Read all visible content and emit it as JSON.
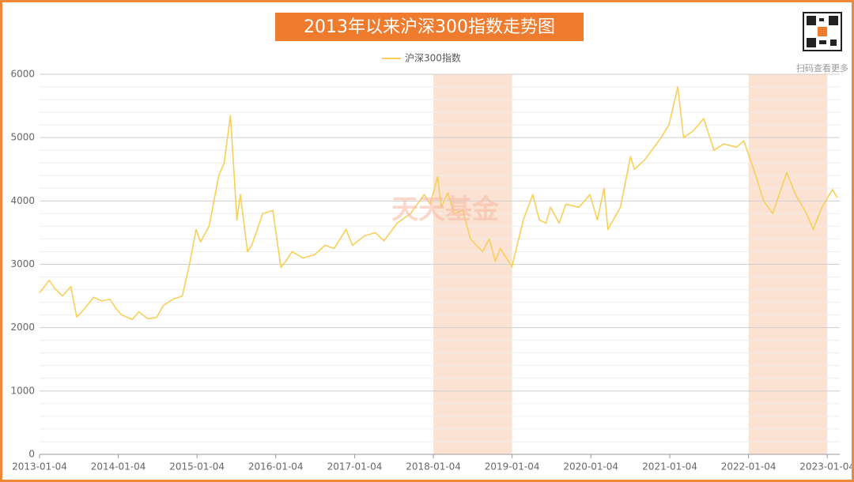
{
  "chart_data": {
    "type": "line",
    "title": "2013年以来沪深300指数走势图",
    "watermark": "天天基金",
    "qr_caption": "扫码查看更多",
    "xlim": [
      "2013-01-04",
      "2023-03-03"
    ],
    "xticks": [
      "2013-01-04",
      "2014-01-04",
      "2015-01-04",
      "2016-01-04",
      "2017-01-04",
      "2018-01-04",
      "2019-01-04",
      "2020-01-04",
      "2021-01-04",
      "2022-01-04",
      "2023-01-04"
    ],
    "ylim": [
      0,
      6000
    ],
    "yticks": [
      0,
      1000,
      2000,
      3000,
      4000,
      5000,
      6000
    ],
    "minor_yticks": [
      200,
      400,
      600,
      800,
      1200,
      1400,
      1600,
      1800,
      2200,
      2400,
      2600,
      2800,
      3200,
      3400,
      3600,
      3800,
      4200,
      4400,
      4600,
      4800,
      5200,
      5400,
      5600,
      5800
    ],
    "grid": true,
    "legend": "top",
    "highlight_color": "#fbe2d2",
    "highlight_ranges": [
      [
        "2018-01-04",
        "2019-01-04"
      ],
      [
        "2022-01-04",
        "2023-01-04"
      ]
    ],
    "series": [
      {
        "name": "沪深300指数",
        "color": "#f7cf5a",
        "x": [
          "2013-01-04",
          "2013-02-18",
          "2013-03-15",
          "2013-04-20",
          "2013-05-29",
          "2013-06-25",
          "2013-07-20",
          "2013-09-12",
          "2013-10-20",
          "2013-11-26",
          "2013-12-25",
          "2014-01-20",
          "2014-03-10",
          "2014-04-10",
          "2014-05-20",
          "2014-07-01",
          "2014-08-01",
          "2014-09-15",
          "2014-10-28",
          "2014-11-30",
          "2014-12-31",
          "2015-01-20",
          "2015-03-01",
          "2015-04-15",
          "2015-05-10",
          "2015-06-08",
          "2015-06-20",
          "2015-07-08",
          "2015-07-24",
          "2015-08-26",
          "2015-09-15",
          "2015-11-05",
          "2015-12-22",
          "2016-01-28",
          "2016-02-20",
          "2016-03-20",
          "2016-05-10",
          "2016-07-01",
          "2016-08-20",
          "2016-10-01",
          "2016-11-25",
          "2016-12-25",
          "2017-02-20",
          "2017-04-10",
          "2017-05-20",
          "2017-07-20",
          "2017-09-20",
          "2017-11-22",
          "2017-12-20",
          "2018-01-24",
          "2018-02-09",
          "2018-03-12",
          "2018-04-10",
          "2018-05-20",
          "2018-06-25",
          "2018-08-20",
          "2018-09-20",
          "2018-10-18",
          "2018-11-10",
          "2019-01-03",
          "2019-02-25",
          "2019-04-10",
          "2019-05-10",
          "2019-06-10",
          "2019-07-01",
          "2019-08-10",
          "2019-09-10",
          "2019-11-10",
          "2019-12-31",
          "2020-02-03",
          "2020-03-05",
          "2020-03-23",
          "2020-05-20",
          "2020-07-06",
          "2020-07-24",
          "2020-09-10",
          "2020-11-25",
          "2020-12-31",
          "2021-02-10",
          "2021-03-09",
          "2021-04-20",
          "2021-06-10",
          "2021-07-28",
          "2021-09-10",
          "2021-11-10",
          "2021-12-13",
          "2022-01-28",
          "2022-03-15",
          "2022-04-26",
          "2022-06-30",
          "2022-08-10",
          "2022-09-30",
          "2022-10-31",
          "2022-12-10",
          "2023-01-28",
          "2023-02-20"
        ],
        "values": [
          2550,
          2750,
          2620,
          2500,
          2650,
          2170,
          2250,
          2480,
          2420,
          2450,
          2300,
          2200,
          2130,
          2250,
          2140,
          2160,
          2350,
          2450,
          2500,
          3000,
          3550,
          3350,
          3600,
          4400,
          4600,
          5350,
          4700,
          3700,
          4100,
          3200,
          3300,
          3800,
          3850,
          2950,
          3050,
          3200,
          3100,
          3150,
          3300,
          3250,
          3550,
          3300,
          3450,
          3500,
          3370,
          3650,
          3800,
          4100,
          3950,
          4380,
          3900,
          4130,
          3800,
          3850,
          3400,
          3200,
          3400,
          3050,
          3250,
          2960,
          3700,
          4100,
          3700,
          3650,
          3900,
          3650,
          3950,
          3900,
          4100,
          3700,
          4200,
          3550,
          3900,
          4700,
          4500,
          4650,
          5000,
          5200,
          5800,
          5000,
          5100,
          5300,
          4800,
          4900,
          4850,
          4950,
          4500,
          4000,
          3800,
          4450,
          4100,
          3800,
          3550,
          3900,
          4180,
          4050
        ]
      }
    ]
  }
}
